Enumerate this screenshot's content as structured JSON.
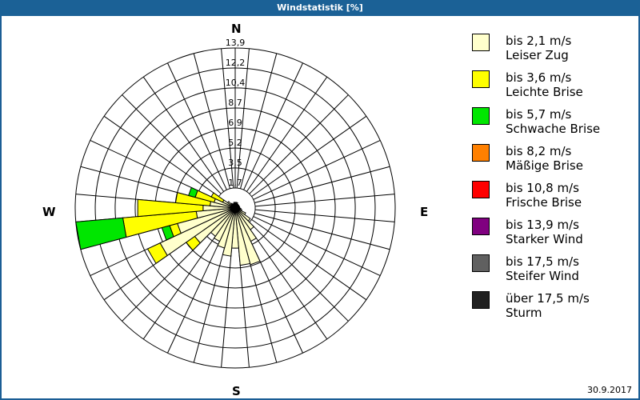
{
  "header": {
    "title": "Windstatistik [%]"
  },
  "compass": {
    "n": "N",
    "e": "E",
    "s": "S",
    "w": "W"
  },
  "footer": {
    "date": "30.9.2017"
  },
  "legend": [
    {
      "line1": "bis 2,1 m/s",
      "line2": "Leiser Zug",
      "color": "#ffffcc"
    },
    {
      "line1": "bis 3,6 m/s",
      "line2": "Leichte Brise",
      "color": "#ffff00"
    },
    {
      "line1": "bis 5,7 m/s",
      "line2": "Schwache Brise",
      "color": "#00e600"
    },
    {
      "line1": "bis 8,2 m/s",
      "line2": "Mäßige Brise",
      "color": "#ff8000"
    },
    {
      "line1": "bis 10,8 m/s",
      "line2": "Frische Brise",
      "color": "#ff0000"
    },
    {
      "line1": "bis 13,9 m/s",
      "line2": "Starker Wind",
      "color": "#800080"
    },
    {
      "line1": "bis 17,5 m/s",
      "line2": "Steifer Wind",
      "color": "#606060"
    },
    {
      "line1": "über 17,5 m/s",
      "line2": "Sturm",
      "color": "#202020"
    }
  ],
  "chart_data": {
    "type": "polar-bar (wind rose)",
    "title": "Windstatistik [%]",
    "unit": "%",
    "rmax": 13.9,
    "ring_labels": [
      "1,7",
      "3,5",
      "5,2",
      "6,9",
      "8,7",
      "10,4",
      "12,2",
      "13,9"
    ],
    "ring_values": [
      1.74,
      3.48,
      5.21,
      6.95,
      8.69,
      10.43,
      12.16,
      13.9
    ],
    "sector_width_deg": 10,
    "categories": [
      "bis 2,1 m/s",
      "bis 3,6 m/s",
      "bis 5,7 m/s",
      "bis 8,2 m/s",
      "bis 10,8 m/s",
      "bis 13,9 m/s",
      "bis 17,5 m/s",
      "über 17,5 m/s"
    ],
    "sectors": [
      {
        "dir": 0,
        "cum": [
          0.4
        ]
      },
      {
        "dir": 10,
        "cum": [
          0.5
        ]
      },
      {
        "dir": 20,
        "cum": [
          0.5
        ]
      },
      {
        "dir": 30,
        "cum": [
          0.4
        ]
      },
      {
        "dir": 40,
        "cum": [
          0.3
        ]
      },
      {
        "dir": 50,
        "cum": [
          0.3
        ]
      },
      {
        "dir": 60,
        "cum": [
          0.3
        ]
      },
      {
        "dir": 70,
        "cum": [
          0.3
        ]
      },
      {
        "dir": 80,
        "cum": [
          0.4
        ]
      },
      {
        "dir": 90,
        "cum": [
          0.4
        ]
      },
      {
        "dir": 100,
        "cum": [
          0.5
        ]
      },
      {
        "dir": 110,
        "cum": [
          0.6
        ]
      },
      {
        "dir": 120,
        "cum": [
          1.0
        ]
      },
      {
        "dir": 130,
        "cum": [
          1.6
        ]
      },
      {
        "dir": 140,
        "cum": [
          2.3
        ]
      },
      {
        "dir": 150,
        "cum": [
          3.2
        ]
      },
      {
        "dir": 160,
        "cum": [
          5.1
        ]
      },
      {
        "dir": 170,
        "cum": [
          5.0
        ]
      },
      {
        "dir": 180,
        "cum": [
          3.5
        ]
      },
      {
        "dir": 190,
        "cum": [
          4.2
        ]
      },
      {
        "dir": 200,
        "cum": [
          3.6
        ]
      },
      {
        "dir": 210,
        "cum": [
          3.2
        ]
      },
      {
        "dir": 220,
        "cum": [
          3.0
        ]
      },
      {
        "dir": 230,
        "cum": [
          4.3,
          5.2
        ]
      },
      {
        "dir": 240,
        "cum": [
          7.2,
          8.4
        ]
      },
      {
        "dir": 250,
        "cum": [
          5.2,
          5.9,
          6.6
        ]
      },
      {
        "dir": 260,
        "cum": [
          3.4,
          9.8,
          13.9
        ]
      },
      {
        "dir": 270,
        "cum": [
          2.8,
          8.5
        ]
      },
      {
        "dir": 280,
        "cum": [
          2.2,
          5.2
        ]
      },
      {
        "dir": 290,
        "cum": [
          1.9,
          3.6,
          4.2
        ]
      },
      {
        "dir": 300,
        "cum": [
          1.2,
          2.3
        ]
      },
      {
        "dir": 310,
        "cum": [
          0.8
        ]
      },
      {
        "dir": 320,
        "cum": [
          0.5
        ]
      },
      {
        "dir": 330,
        "cum": [
          0.4
        ]
      },
      {
        "dir": 340,
        "cum": [
          0.4
        ]
      },
      {
        "dir": 350,
        "cum": [
          0.5
        ]
      }
    ]
  }
}
